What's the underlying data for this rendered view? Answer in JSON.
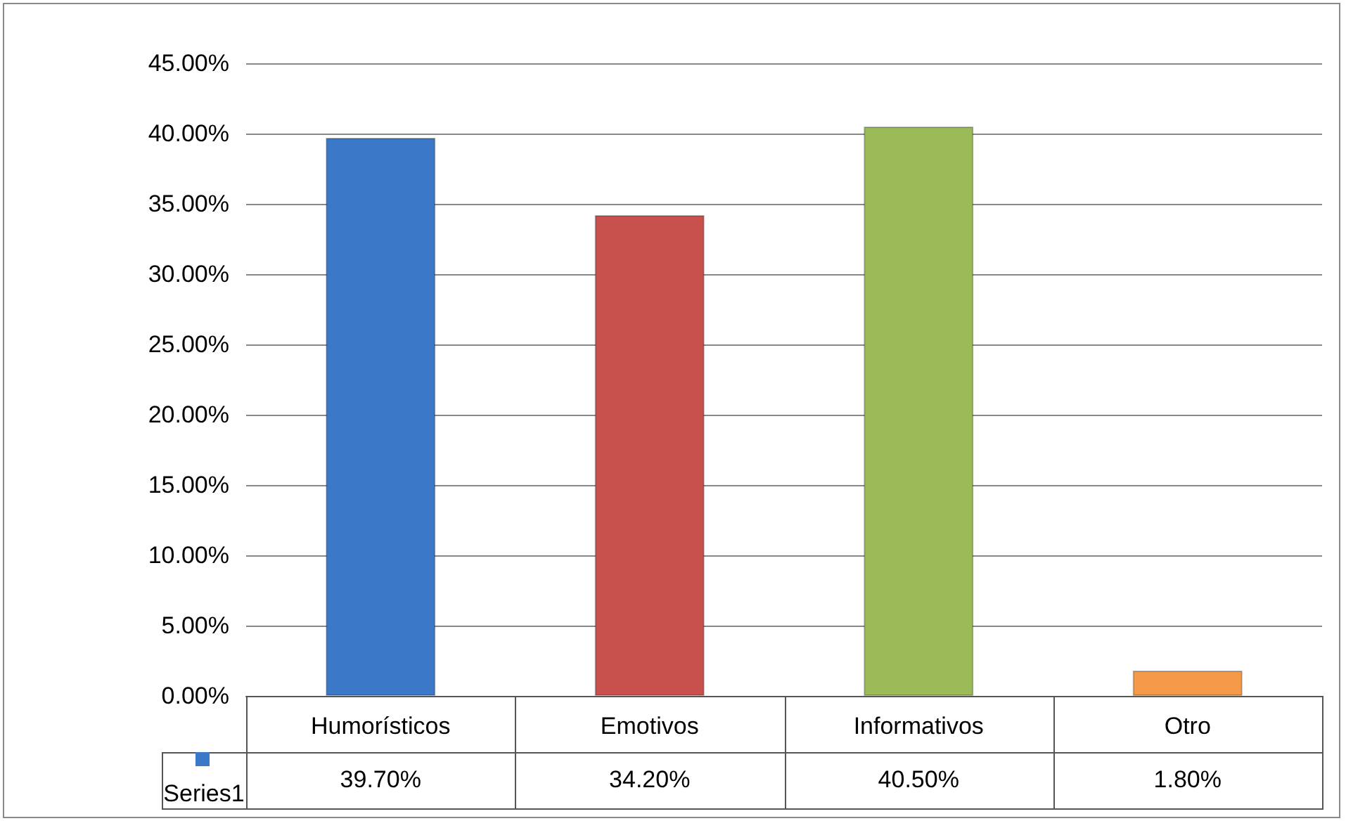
{
  "chart_data": {
    "type": "bar",
    "categories": [
      "Humorísticos",
      "Emotivos",
      "Informativos",
      "Otro"
    ],
    "series": [
      {
        "name": "Series1",
        "color": "#3c78c8",
        "colors": [
          "#3c78c8",
          "#c8504d",
          "#9bbb59",
          "#f59a48"
        ],
        "values": [
          39.7,
          34.2,
          40.5,
          1.8
        ],
        "value_labels": [
          "39.70%",
          "34.20%",
          "40.50%",
          "1.80%"
        ]
      }
    ],
    "ylim": [
      0,
      45
    ],
    "yticks": [
      {
        "value": 0,
        "label": "0.00%"
      },
      {
        "value": 5,
        "label": "5.00%"
      },
      {
        "value": 10,
        "label": "10.00%"
      },
      {
        "value": 15,
        "label": "15.00%"
      },
      {
        "value": 20,
        "label": "20.00%"
      },
      {
        "value": 25,
        "label": "25.00%"
      },
      {
        "value": 30,
        "label": "30.00%"
      },
      {
        "value": 35,
        "label": "35.00%"
      },
      {
        "value": 40,
        "label": "40.00%"
      },
      {
        "value": 45,
        "label": "45.00%"
      }
    ],
    "grid": "y"
  }
}
